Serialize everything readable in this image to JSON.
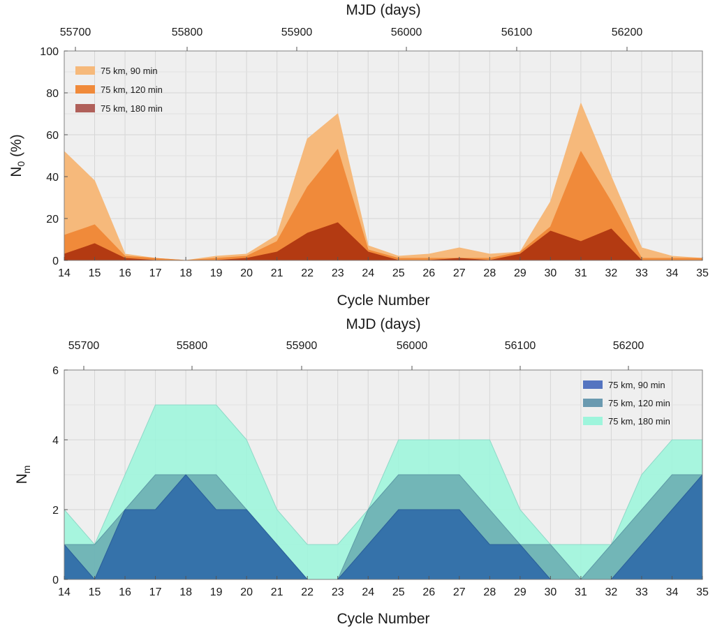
{
  "chart_data": [
    {
      "type": "area",
      "title": "",
      "xlabel": "Cycle Number",
      "ylabel": "N",
      "ylabel_sub": "0",
      "ylabel_suffix": " (%)",
      "top_axis_label": "MJD (days)",
      "top_ticks": [
        "55700",
        "55800",
        "55900",
        "56000",
        "56100",
        "56200"
      ],
      "x": [
        14,
        15,
        16,
        17,
        18,
        19,
        20,
        21,
        22,
        23,
        24,
        25,
        26,
        27,
        28,
        29,
        30,
        31,
        32,
        33,
        34,
        35
      ],
      "xlim": [
        14,
        35
      ],
      "ylim": [
        0,
        100
      ],
      "yticks": [
        "0",
        "20",
        "40",
        "60",
        "80",
        "100"
      ],
      "grid": true,
      "legend_position": "top-left",
      "series": [
        {
          "name": "75 km, 90 min",
          "color": "#f6b97b",
          "values": [
            52,
            38,
            3,
            1,
            0,
            2,
            3,
            12,
            58,
            70,
            7,
            2,
            3,
            6,
            3,
            4,
            28,
            75,
            40,
            6,
            2,
            1
          ]
        },
        {
          "name": "75 km, 120 min",
          "color": "#f08a3a",
          "values": [
            12,
            17,
            2,
            1,
            0,
            1,
            2,
            9,
            35,
            53,
            5,
            1,
            1,
            1,
            1,
            4,
            16,
            52,
            28,
            1,
            1,
            1
          ]
        },
        {
          "name": "75 km, 180 min",
          "color": "#b33a12",
          "values": [
            3,
            8,
            1,
            0,
            0,
            0,
            1,
            4,
            13,
            18,
            4,
            0,
            0,
            1,
            0,
            3,
            14,
            9,
            15,
            0,
            0,
            0
          ]
        }
      ],
      "legend_colors": [
        "#f6b97b",
        "#f08a3a",
        "#b0605a"
      ]
    },
    {
      "type": "area",
      "title": "",
      "xlabel": "Cycle Number",
      "ylabel": "N",
      "ylabel_sub": "m",
      "ylabel_suffix": "",
      "top_axis_label": "MJD (days)",
      "top_ticks": [
        "55700",
        "55800",
        "55900",
        "56000",
        "56100",
        "56200"
      ],
      "x": [
        14,
        15,
        16,
        17,
        18,
        19,
        20,
        21,
        22,
        23,
        24,
        25,
        26,
        27,
        28,
        29,
        30,
        31,
        32,
        33,
        34,
        35
      ],
      "xlim": [
        14,
        35
      ],
      "ylim": [
        0,
        6
      ],
      "yticks": [
        "0",
        "2",
        "4",
        "6"
      ],
      "grid": true,
      "legend_position": "top-right",
      "series": [
        {
          "name": "75 km, 180 min",
          "color": "#9ef5dc",
          "values": [
            2,
            1,
            3,
            5,
            5,
            5,
            4,
            2,
            1,
            1,
            2,
            4,
            4,
            4,
            4,
            2,
            1,
            1,
            1,
            3,
            4,
            4
          ]
        },
        {
          "name": "75 km, 120 min",
          "color": "#69aab0",
          "values": [
            1,
            1,
            2,
            3,
            3,
            3,
            2,
            1,
            0,
            0,
            2,
            3,
            3,
            3,
            2,
            1,
            1,
            0,
            1,
            2,
            3,
            3
          ]
        },
        {
          "name": "75 km, 90 min",
          "color": "#2f6aa8",
          "values": [
            1,
            0,
            2,
            2,
            3,
            2,
            2,
            1,
            0,
            0,
            1,
            2,
            2,
            2,
            1,
            1,
            0,
            0,
            0,
            1,
            2,
            3
          ]
        }
      ],
      "legend_items": [
        "75 km, 90 min",
        "75 km, 120 min",
        "75 km, 180 min"
      ],
      "legend_colors": [
        "#5474c0",
        "#6a9ab0",
        "#9ef5dc"
      ]
    }
  ]
}
